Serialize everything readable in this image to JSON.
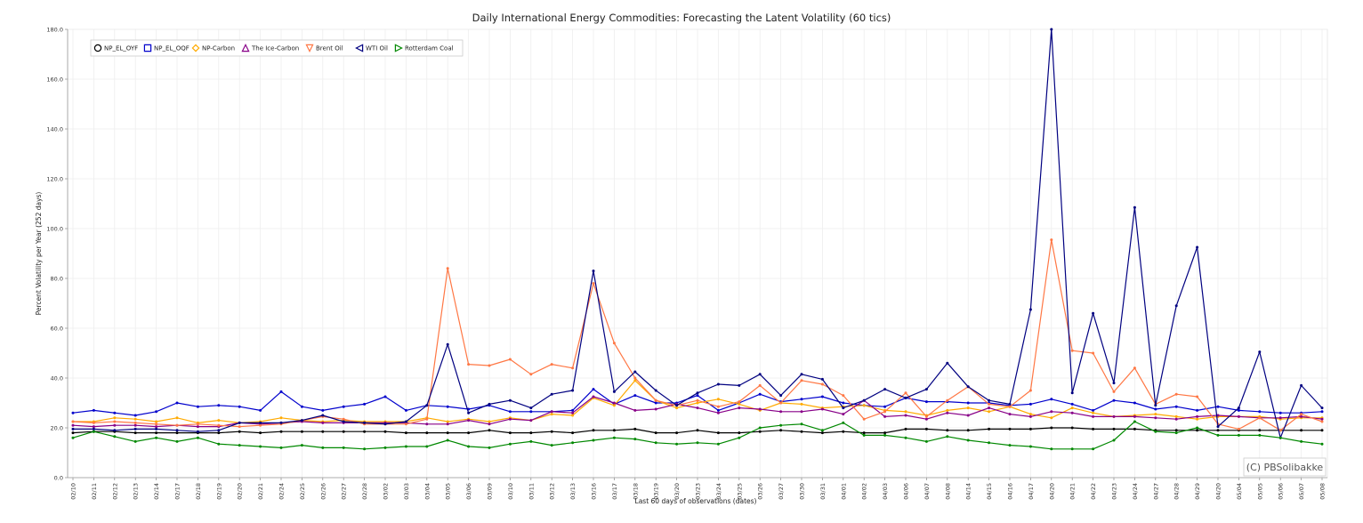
{
  "chart_data": {
    "type": "line",
    "title": "Daily International Energy Commodities: Forecasting the Latent Volatility (60 tics)",
    "xlabel": "Last 60 days of observations (dates)",
    "ylabel": "Percent Volatility per Year (252 days)",
    "ylim": [
      0,
      180
    ],
    "yticks": [
      "0.0",
      "20.0",
      "40.0",
      "60.0",
      "80.0",
      "100.0",
      "120.0",
      "140.0",
      "160.0",
      "180.0"
    ],
    "grid": true,
    "legend_position": "top-left",
    "copyright": "(C) PBSolibakke",
    "categories": [
      "02/10",
      "02/11",
      "02/12",
      "02/13",
      "02/14",
      "02/17",
      "02/18",
      "02/19",
      "02/20",
      "02/21",
      "02/24",
      "02/25",
      "02/26",
      "02/27",
      "02/28",
      "03/02",
      "03/03",
      "03/04",
      "03/05",
      "03/06",
      "03/09",
      "03/10",
      "03/11",
      "03/12",
      "03/13",
      "03/16",
      "03/17",
      "03/18",
      "03/19",
      "03/20",
      "03/23",
      "03/24",
      "03/25",
      "03/26",
      "03/27",
      "03/30",
      "03/31",
      "04/01",
      "04/02",
      "04/03",
      "04/06",
      "04/07",
      "04/08",
      "04/14",
      "04/15",
      "04/16",
      "04/17",
      "04/20",
      "04/21",
      "04/22",
      "04/23",
      "04/24",
      "04/27",
      "04/28",
      "04/29",
      "04/20",
      "05/04",
      "05/05",
      "05/06",
      "05/07",
      "05/08"
    ],
    "series": [
      {
        "name": "NP_EL_OYF",
        "color": "#000000",
        "marker": "circle",
        "values": [
          18,
          18.5,
          18.5,
          18,
          18,
          18,
          18,
          18,
          18.5,
          18,
          18.5,
          18.5,
          18.5,
          18.5,
          18.5,
          18.5,
          18,
          18,
          18,
          18,
          19,
          18,
          18,
          18.5,
          18,
          19,
          19,
          19.5,
          18,
          18,
          19,
          18,
          18,
          18.5,
          19,
          18.5,
          18,
          18.5,
          18,
          18,
          19.5,
          19.5,
          19,
          19,
          19.5,
          19.5,
          19.5,
          20,
          20,
          19.5,
          19.5,
          19.5,
          19,
          19,
          19,
          19,
          19,
          19,
          19,
          19,
          19
        ]
      },
      {
        "name": "NP_EL_OQF",
        "color": "#0000cc",
        "marker": "square",
        "values": [
          26,
          27,
          26,
          25,
          26.5,
          30,
          28.5,
          29,
          28.5,
          27,
          34.5,
          28.5,
          27,
          28.5,
          29.5,
          32.5,
          27,
          29,
          28.5,
          27.5,
          29,
          26.5,
          26.5,
          26.5,
          27,
          35.5,
          29.5,
          33,
          30,
          30,
          33,
          27,
          30,
          33.5,
          30.5,
          31.5,
          32.5,
          30,
          29,
          28.5,
          32,
          30.5,
          30.5,
          30,
          30,
          29,
          29.5,
          31.5,
          29.5,
          27,
          31,
          30,
          27.5,
          28.5,
          27,
          28.5,
          27,
          26.5,
          26,
          26,
          26.5
        ]
      },
      {
        "name": "NP-Carbon",
        "color": "#ffaa00",
        "marker": "diamond",
        "values": [
          22.5,
          22.5,
          24,
          23.5,
          22.5,
          24,
          22,
          23,
          22,
          22.5,
          24,
          23,
          22.5,
          23,
          22.5,
          22.5,
          22.5,
          24,
          22.5,
          23.5,
          22.5,
          24,
          23,
          25.5,
          25,
          32,
          29,
          39,
          31,
          28,
          30,
          31.5,
          29.5,
          27,
          30,
          29.5,
          28,
          28.5,
          29,
          27,
          26.5,
          25,
          27,
          28,
          26.5,
          28.5,
          25.5,
          24,
          28,
          26,
          24.5,
          25,
          25.5,
          24.5,
          23.5,
          24.5,
          24.5,
          24.5,
          23.5,
          24,
          24
        ]
      },
      {
        "name": "The Ice-Carbon",
        "color": "#880088",
        "marker": "triangle-up",
        "values": [
          21,
          20.5,
          21,
          21,
          20.5,
          21,
          20.5,
          20.5,
          22,
          21.5,
          22,
          22.5,
          22,
          22,
          22,
          22,
          22,
          21.5,
          21.5,
          23,
          21.5,
          23.5,
          23,
          26.5,
          26,
          32.5,
          30,
          27,
          27.5,
          29.5,
          28,
          26,
          28,
          27.5,
          26.5,
          26.5,
          27.5,
          25.5,
          31,
          24.5,
          25,
          23.5,
          26,
          25,
          28,
          25.5,
          24.5,
          26.5,
          26,
          24.5,
          24.5,
          24.5,
          24,
          23.5,
          24.5,
          25,
          24.5,
          24,
          24,
          24.5,
          23.5
        ]
      },
      {
        "name": "Brent Oil",
        "color": "#ff7744",
        "marker": "triangle-down",
        "values": [
          22.5,
          22,
          22.5,
          22,
          21.5,
          21,
          21.5,
          21,
          20.5,
          21,
          21.5,
          23,
          24.5,
          23.5,
          21.5,
          21.5,
          21.5,
          23.5,
          84,
          45.5,
          45,
          47.5,
          41.5,
          45.5,
          44,
          78,
          54,
          40,
          31,
          29,
          31,
          28.5,
          30.5,
          37,
          30,
          39,
          37.5,
          33,
          23.5,
          26.5,
          34,
          24.5,
          31,
          36.5,
          29.5,
          28.5,
          35,
          95.5,
          51,
          50,
          34.5,
          44,
          29.5,
          33.5,
          32.5,
          21.5,
          19.5,
          24,
          19,
          25.5,
          22.5
        ]
      },
      {
        "name": "WTI Oil",
        "color": "#000080",
        "marker": "triangle-left",
        "values": [
          19.5,
          19.5,
          19,
          19.5,
          19.5,
          19,
          18.5,
          19,
          22,
          22,
          22,
          23,
          25,
          22.5,
          22,
          21.5,
          22.5,
          29,
          53.5,
          26,
          29.5,
          31,
          28,
          33.5,
          35,
          83,
          34.5,
          42.5,
          35,
          29,
          34,
          37.5,
          37,
          41.5,
          33,
          41.5,
          39.5,
          28,
          31,
          35.5,
          32,
          35.5,
          46,
          36.5,
          31,
          29.5,
          67.5,
          180,
          34,
          66,
          38,
          108.5,
          29,
          69,
          92.5,
          20.5,
          28,
          50.5,
          16,
          37,
          28
        ]
      },
      {
        "name": "Rotterdam Coal",
        "color": "#008800",
        "marker": "triangle-right",
        "values": [
          16,
          18.5,
          16.5,
          14.5,
          16,
          14.5,
          16,
          13.5,
          13,
          12.5,
          12,
          13,
          12,
          12,
          11.5,
          12,
          12.5,
          12.5,
          15,
          12.5,
          12,
          13.5,
          14.5,
          13,
          14,
          15,
          16,
          15.5,
          14,
          13.5,
          14,
          13.5,
          16,
          20,
          21,
          21.5,
          19,
          22,
          17,
          17,
          16,
          14.5,
          16.5,
          15,
          14,
          13,
          12.5,
          11.5,
          11.5,
          11.5,
          15,
          22.5,
          18.5,
          18,
          20,
          17,
          17,
          17,
          16,
          14.5,
          13.5
        ]
      }
    ]
  }
}
